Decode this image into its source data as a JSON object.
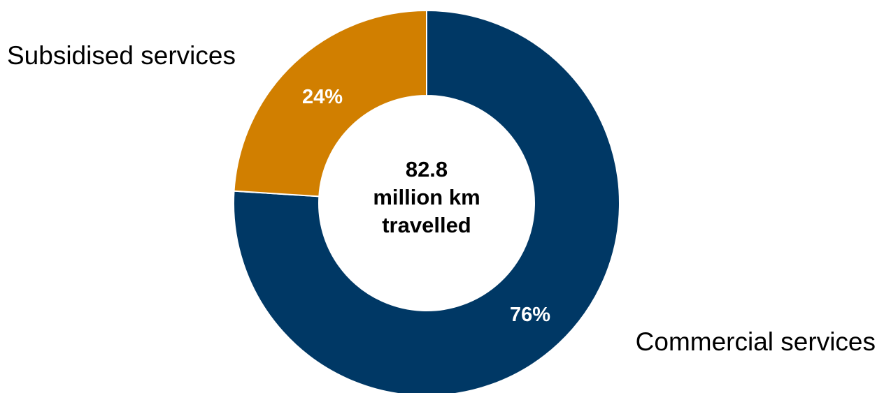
{
  "chart_data": {
    "type": "pie",
    "style": "donut",
    "categories": [
      "Commercial services",
      "Subsidised services"
    ],
    "values": [
      76,
      24
    ],
    "value_labels": [
      "76%",
      "24%"
    ],
    "colors": [
      "#003865",
      "#D17F00"
    ],
    "center_text": [
      "82.8",
      "million km",
      "travelled"
    ]
  }
}
